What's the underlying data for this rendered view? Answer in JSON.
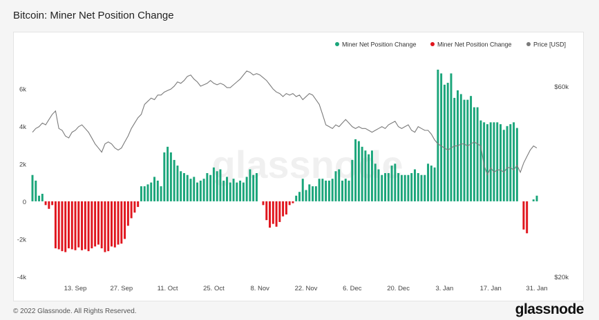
{
  "page": {
    "title": "Bitcoin: Miner Net Position Change",
    "copyright": "© 2022 Glassnode. All Rights Reserved.",
    "logo": "glassnode",
    "watermark": "glassnode"
  },
  "colors": {
    "positive": "#1aa57a",
    "negative": "#e0151d",
    "price": "#7a7a7a"
  },
  "chart_data": {
    "type": "bar",
    "title": "Bitcoin: Miner Net Position Change",
    "legend_position": "top-right",
    "legend": [
      {
        "label": "Miner Net Position Change",
        "color": "#1aa57a",
        "marker": "dot"
      },
      {
        "label": "Miner Net Position Change",
        "color": "#e0151d",
        "marker": "dot"
      },
      {
        "label": "Price [USD]",
        "color": "#7a7a7a",
        "marker": "dot"
      }
    ],
    "start_date": "2021-08-31",
    "x_ticks": [
      {
        "label": "13. Sep",
        "date": "2021-09-13"
      },
      {
        "label": "27. Sep",
        "date": "2021-09-27"
      },
      {
        "label": "11. Oct",
        "date": "2021-10-11"
      },
      {
        "label": "25. Oct",
        "date": "2021-10-25"
      },
      {
        "label": "8. Nov",
        "date": "2021-11-08"
      },
      {
        "label": "22. Nov",
        "date": "2021-11-22"
      },
      {
        "label": "6. Dec",
        "date": "2021-12-06"
      },
      {
        "label": "20. Dec",
        "date": "2021-12-20"
      },
      {
        "label": "3. Jan",
        "date": "2022-01-03"
      },
      {
        "label": "17. Jan",
        "date": "2022-01-17"
      },
      {
        "label": "31. Jan",
        "date": "2022-01-31"
      }
    ],
    "y_left": {
      "ticks": [
        {
          "v": 6000,
          "label": "6k"
        },
        {
          "v": 4000,
          "label": "4k"
        },
        {
          "v": 2000,
          "label": "2k"
        },
        {
          "v": 0,
          "label": "0"
        },
        {
          "v": -2000,
          "label": "-2k"
        },
        {
          "v": -4000,
          "label": "-4k"
        }
      ],
      "min": -4000,
      "max": 7000
    },
    "y_right": {
      "ticks": [
        {
          "v": 60000,
          "label": "$60k"
        },
        {
          "v": 20000,
          "label": "$20k"
        }
      ],
      "scale": "log",
      "min": 20000,
      "max": 66000
    },
    "series": [
      {
        "name": "Miner Net Position Change",
        "values": [
          1400,
          1100,
          300,
          400,
          -200,
          -400,
          -200,
          -2500,
          -2550,
          -2650,
          -2700,
          -2500,
          -2550,
          -2600,
          -2450,
          -2600,
          -2550,
          -2650,
          -2500,
          -2400,
          -2300,
          -2500,
          -2700,
          -2650,
          -2400,
          -2450,
          -2300,
          -2250,
          -2000,
          -1300,
          -900,
          -600,
          -300,
          800,
          800,
          900,
          1000,
          1300,
          1100,
          800,
          2600,
          2900,
          2600,
          2200,
          1900,
          1600,
          1500,
          1400,
          1200,
          1300,
          1000,
          1100,
          1200,
          1500,
          1400,
          1800,
          1600,
          1700,
          1100,
          1300,
          1000,
          1200,
          1000,
          1100,
          1000,
          1300,
          1700,
          1400,
          1500,
          0,
          -200,
          -1000,
          -1400,
          -1200,
          -1350,
          -1100,
          -800,
          -700,
          -200,
          -100,
          300,
          500,
          1200,
          600,
          900,
          800,
          800,
          1200,
          1200,
          1100,
          1100,
          1200,
          1600,
          1700,
          1100,
          1200,
          1100,
          2200,
          3300,
          3200,
          2900,
          2700,
          2500,
          2700,
          2000,
          1700,
          1400,
          1500,
          1500,
          1900,
          2000,
          1500,
          1400,
          1400,
          1400,
          1500,
          1700,
          1500,
          1400,
          1400,
          2000,
          1900,
          1800,
          7000,
          6800,
          6200,
          6300,
          6800,
          5500,
          5900,
          5700,
          5400,
          5400,
          5600,
          5000,
          5000,
          4300,
          4200,
          4100,
          4200,
          4200,
          4200,
          4100,
          3800,
          4000,
          4100,
          4200,
          3900,
          0,
          -1500,
          -1700,
          0,
          100,
          300
        ]
      },
      {
        "name": "Price [USD]",
        "values": [
          46000,
          47000,
          47500,
          48500,
          48000,
          49500,
          51000,
          52000,
          47000,
          46500,
          45000,
          44500,
          46000,
          46500,
          47500,
          48000,
          47000,
          46000,
          44500,
          43000,
          42000,
          41000,
          43000,
          43500,
          43000,
          42000,
          41500,
          42000,
          43500,
          45000,
          47000,
          48500,
          50000,
          51000,
          54000,
          55000,
          56000,
          55500,
          57000,
          57000,
          58000,
          58500,
          59000,
          60000,
          61500,
          61000,
          62000,
          63500,
          64000,
          62500,
          61500,
          60000,
          60500,
          61000,
          62000,
          61000,
          60500,
          61000,
          60500,
          59500,
          59500,
          60500,
          61500,
          62500,
          64000,
          65500,
          65000,
          64000,
          64500,
          64000,
          63000,
          62000,
          60500,
          59000,
          58000,
          57500,
          56500,
          57500,
          57000,
          57500,
          56500,
          57000,
          55500,
          56500,
          57500,
          57000,
          55500,
          54000,
          51000,
          48000,
          47500,
          47000,
          48000,
          47500,
          48500,
          49500,
          48500,
          47500,
          47000,
          47500,
          47000,
          47000,
          46500,
          46000,
          46500,
          47000,
          47500,
          47000,
          48000,
          48500,
          49000,
          47500,
          47000,
          47500,
          48000,
          46500,
          46000,
          47500,
          47000,
          46500,
          46500,
          45500,
          44000,
          43000,
          42500,
          42000,
          41500,
          42000,
          42500,
          42500,
          43000,
          43000,
          42500,
          43000,
          43500,
          43000,
          42500,
          38000,
          36000,
          37500,
          36500,
          37000,
          37000,
          36500,
          37500,
          37500,
          37000,
          38000,
          36500,
          38500,
          40000,
          41500,
          42500,
          42000
        ]
      }
    ]
  }
}
